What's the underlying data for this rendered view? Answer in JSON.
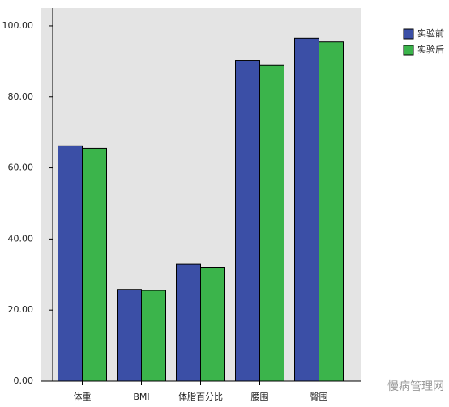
{
  "chart_data": {
    "type": "bar",
    "categories": [
      "体重",
      "BMI",
      "体脂百分比",
      "腰围",
      "臀围"
    ],
    "series": [
      {
        "name": "实验前",
        "color": "#3b4fa6",
        "values": [
          66.2,
          25.8,
          33.0,
          90.3,
          96.5
        ]
      },
      {
        "name": "实验后",
        "color": "#3bb44b",
        "values": [
          65.5,
          25.5,
          32.0,
          89.0,
          95.5
        ]
      }
    ],
    "ylim": [
      0,
      105
    ],
    "yticks": [
      {
        "value": 0,
        "label": "0.00"
      },
      {
        "value": 20,
        "label": "20.00"
      },
      {
        "value": 40,
        "label": "40.00"
      },
      {
        "value": 60,
        "label": "60.00"
      },
      {
        "value": 80,
        "label": "80.00"
      },
      {
        "value": 100,
        "label": "100.00"
      }
    ],
    "legend": "top-right",
    "watermark": "慢病管理网"
  }
}
